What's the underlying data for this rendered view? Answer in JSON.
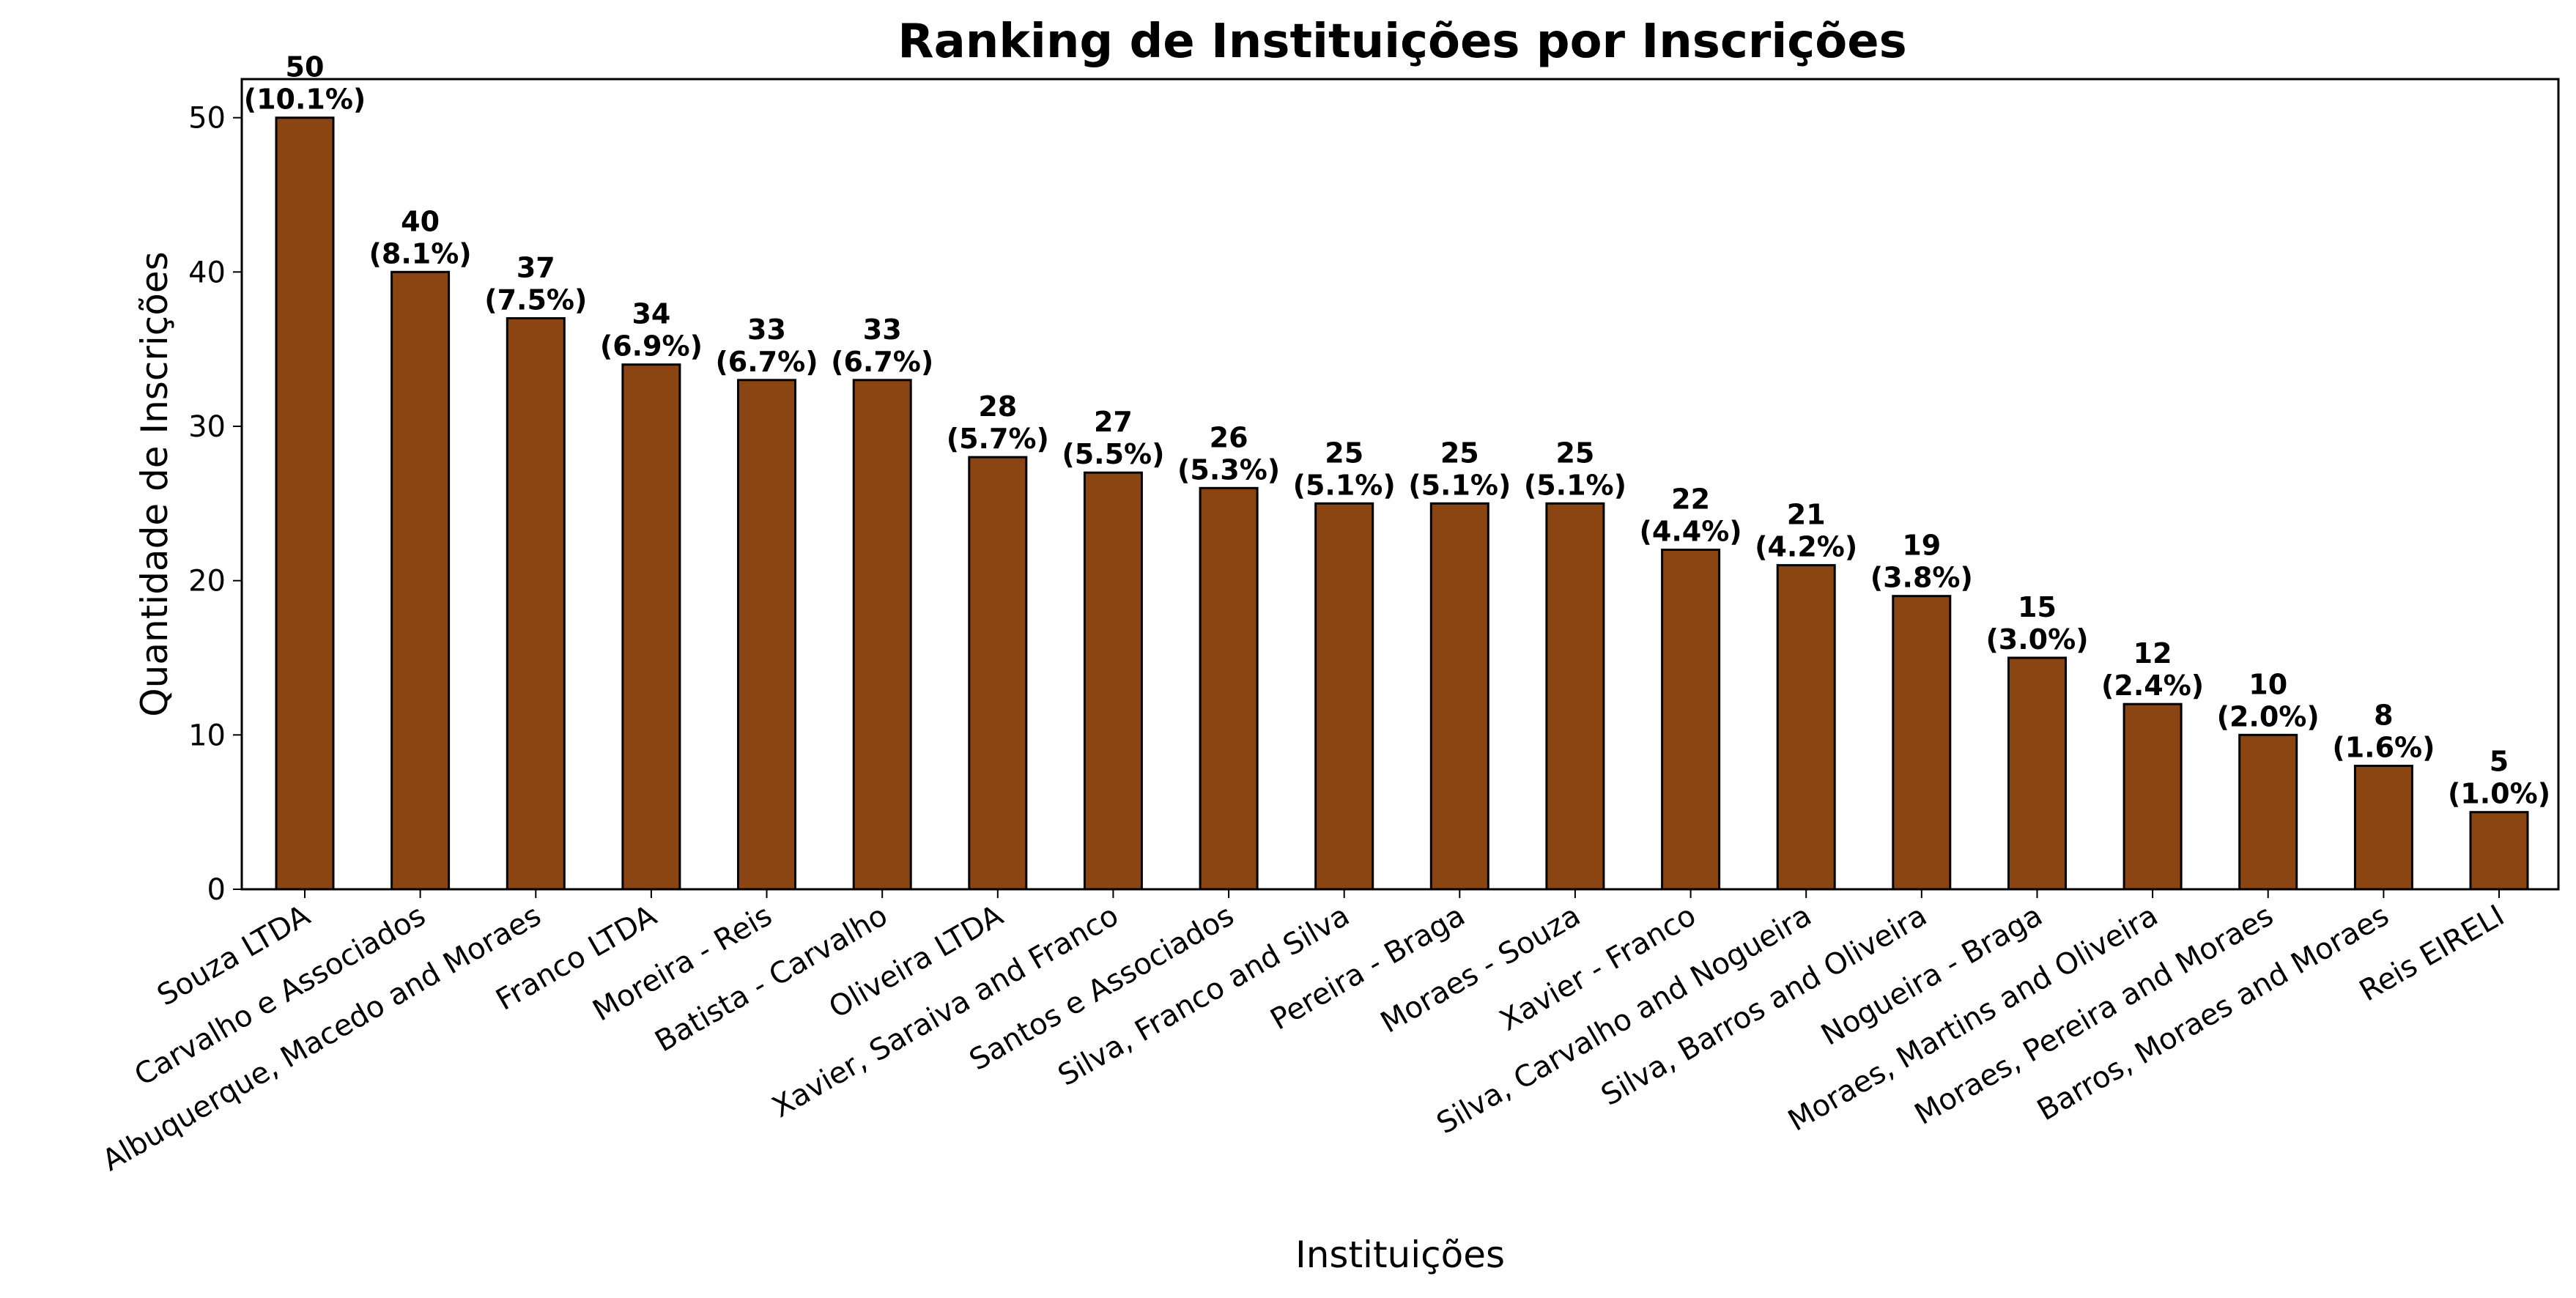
{
  "chart_data": {
    "type": "bar",
    "title": "Ranking de Instituições por Inscrições",
    "xlabel": "Instituições",
    "ylabel": "Quantidade de Inscrições",
    "ylim": [
      0,
      52.5
    ],
    "yticks": [
      0,
      10,
      20,
      30,
      40,
      50
    ],
    "grid": false,
    "bar_color": "#8B4513",
    "bar_edge_color": "#000000",
    "categories": [
      "Souza LTDA",
      "Carvalho e Associados",
      "Albuquerque, Macedo and Moraes",
      "Franco LTDA",
      "Moreira - Reis",
      "Batista - Carvalho",
      "Oliveira LTDA",
      "Xavier, Saraiva and Franco",
      "Santos e Associados",
      "Silva, Franco and Silva",
      "Pereira - Braga",
      "Moraes - Souza",
      "Xavier - Franco",
      "Silva, Carvalho and Nogueira",
      "Silva, Barros and Oliveira",
      "Nogueira - Braga",
      "Moraes, Martins and Oliveira",
      "Moraes, Pereira and Moraes",
      "Barros, Moraes and Moraes",
      "Reis EIRELI"
    ],
    "values": [
      50,
      40,
      37,
      34,
      33,
      33,
      28,
      27,
      26,
      25,
      25,
      25,
      22,
      21,
      19,
      15,
      12,
      10,
      8,
      5
    ],
    "percent_labels": [
      "(10.1%)",
      "(8.1%)",
      "(7.5%)",
      "(6.9%)",
      "(6.7%)",
      "(6.7%)",
      "(5.7%)",
      "(5.5%)",
      "(5.3%)",
      "(5.1%)",
      "(5.1%)",
      "(5.1%)",
      "(4.4%)",
      "(4.2%)",
      "(3.8%)",
      "(3.0%)",
      "(2.4%)",
      "(2.0%)",
      "(1.6%)",
      "(1.0%)"
    ]
  }
}
